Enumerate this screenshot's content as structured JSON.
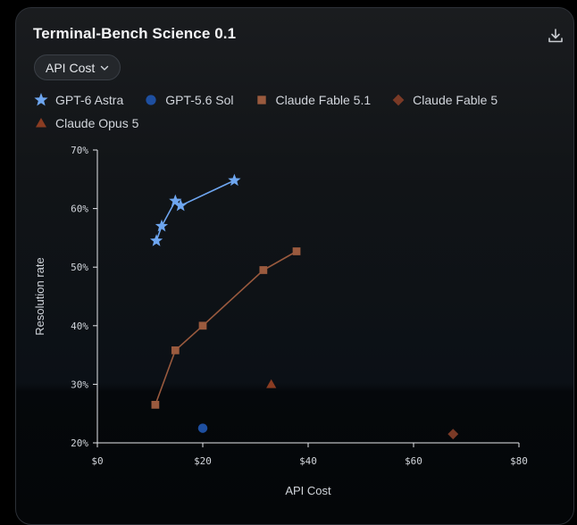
{
  "card": {
    "title": "Terminal-Bench Science 0.1"
  },
  "controls": {
    "metric_label": "API Cost"
  },
  "colors": {
    "gpt6": "#6ea6f0",
    "gpt56": "#1e4fa0",
    "fable51": "#9a5a3e",
    "fable5": "#7a3a26",
    "opus5": "#8a3c22",
    "axis": "#e5e7eb",
    "text": "#d1d5db"
  },
  "chart_data": {
    "type": "scatter",
    "title": "",
    "xlabel": "API Cost",
    "ylabel": "Resolution rate",
    "xlim": [
      0,
      80
    ],
    "ylim": [
      20,
      70
    ],
    "xticks": [
      "$0",
      "$20",
      "$40",
      "$60",
      "$80"
    ],
    "yticks": [
      "20%",
      "30%",
      "40%",
      "50%",
      "60%",
      "70%"
    ],
    "legend_position": "top",
    "series": [
      {
        "name": "GPT-6 Astra",
        "marker": "star",
        "color": "#6ea6f0",
        "connected": true,
        "x": [
          11.2,
          12.2,
          14.8,
          15.8,
          26.0
        ],
        "y": [
          54.5,
          57.0,
          61.3,
          60.5,
          64.8
        ]
      },
      {
        "name": "GPT-5.6 Sol",
        "marker": "circle",
        "color": "#1e4fa0",
        "connected": false,
        "x": [
          20.0
        ],
        "y": [
          22.5
        ]
      },
      {
        "name": "Claude Fable 5.1",
        "marker": "square",
        "color": "#9a5a3e",
        "connected": true,
        "x": [
          11.0,
          14.8,
          20.0,
          31.5,
          37.8
        ],
        "y": [
          26.5,
          35.8,
          40.0,
          49.5,
          52.7
        ]
      },
      {
        "name": "Claude Fable 5",
        "marker": "diamond",
        "color": "#7a3a26",
        "connected": false,
        "x": [
          67.5
        ],
        "y": [
          21.5
        ]
      },
      {
        "name": "Claude Opus 5",
        "marker": "triangle",
        "color": "#8a3c22",
        "connected": false,
        "x": [
          33.0
        ],
        "y": [
          30.0
        ]
      }
    ]
  }
}
